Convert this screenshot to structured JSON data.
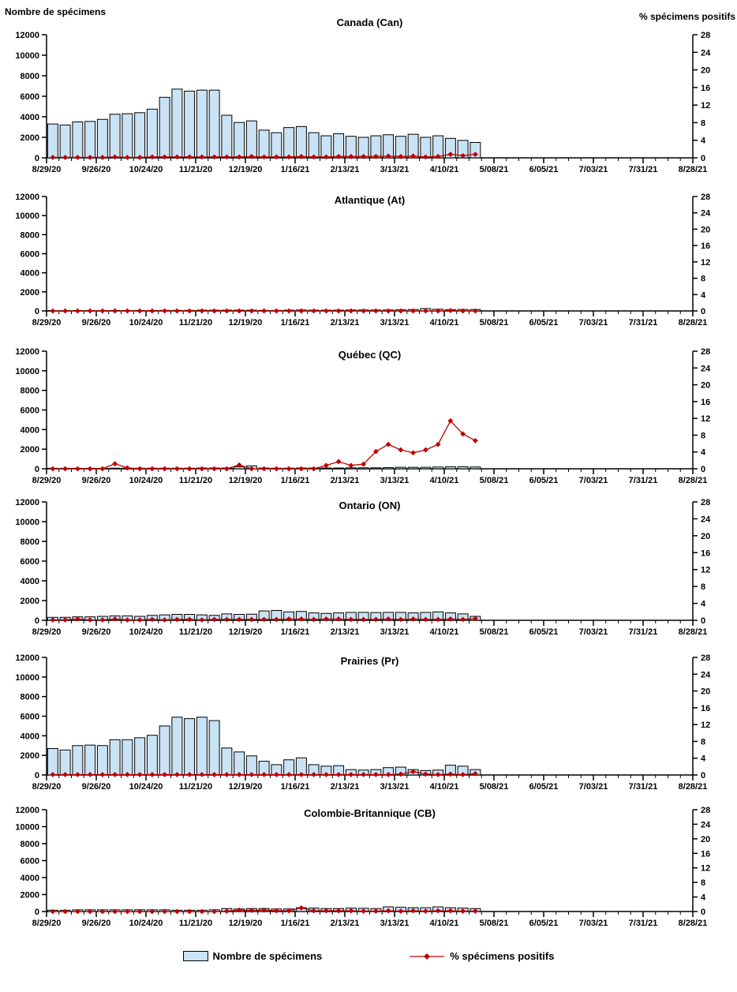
{
  "headers": {
    "left": "Nombre de spécimens",
    "right": "% spécimens positifs"
  },
  "legend": {
    "bar_label": "Nombre de spécimens",
    "line_label": "% spécimens positifs"
  },
  "colors": {
    "bar_fill": "#C9E3F6",
    "bar_border": "#000000",
    "line": "#C00000",
    "axis": "#000000",
    "text": "#000000"
  },
  "chart_data": {
    "type": "bar+line",
    "categories": [
      "8/29/20",
      "9/5/20",
      "9/12/20",
      "9/19/20",
      "9/26/20",
      "10/3/20",
      "10/10/20",
      "10/17/20",
      "10/24/20",
      "10/31/20",
      "11/7/20",
      "11/14/20",
      "11/21/20",
      "11/28/20",
      "12/5/20",
      "12/12/20",
      "12/19/20",
      "12/26/20",
      "1/2/21",
      "1/9/21",
      "1/16/21",
      "1/23/21",
      "1/30/21",
      "2/6/21",
      "2/13/21",
      "2/20/21",
      "2/27/21",
      "3/6/21",
      "3/13/21",
      "3/20/21",
      "3/27/21",
      "4/3/21",
      "4/10/21",
      "4/17/21",
      "4/24/21"
    ],
    "x_axis": {
      "tick_labels": [
        "8/29/20",
        "9/26/20",
        "10/24/20",
        "11/21/20",
        "12/19/20",
        "1/16/21",
        "2/13/21",
        "3/13/21",
        "4/10/21",
        "5/08/21",
        "6/05/21",
        "7/03/21",
        "7/31/21",
        "8/28/21"
      ],
      "weeks_total": 52
    },
    "left_axis": {
      "label": "Nombre de spécimens",
      "range": [
        0,
        12000
      ],
      "ticks": [
        12000,
        10000,
        8000,
        6000,
        4000,
        2000,
        0
      ]
    },
    "right_axis": {
      "label": "% spécimens positifs",
      "range": [
        0,
        28
      ],
      "ticks": [
        28,
        24,
        20,
        16,
        12,
        8,
        4,
        0
      ]
    },
    "panels": [
      {
        "title": "Canada (Can)",
        "series": [
          {
            "name": "Nombre de spécimens",
            "type": "bar",
            "axis": "left",
            "values": [
              3300,
              3200,
              3500,
              3550,
              3750,
              4250,
              4300,
              4400,
              4750,
              5900,
              6700,
              6500,
              6600,
              6600,
              4150,
              3450,
              3600,
              2700,
              2450,
              2950,
              3050,
              2450,
              2150,
              2350,
              2100,
              2000,
              2150,
              2250,
              2100,
              2300,
              2000,
              2150,
              1900,
              1700,
              1500
            ]
          },
          {
            "name": "% spécimens positifs",
            "type": "line",
            "axis": "right",
            "values": [
              0.1,
              0.1,
              0.1,
              0.1,
              0.1,
              0.2,
              0.1,
              0.1,
              0.2,
              0.2,
              0.2,
              0.2,
              0.2,
              0.2,
              0.2,
              0.2,
              0.3,
              0.2,
              0.2,
              0.2,
              0.3,
              0.2,
              0.2,
              0.3,
              0.3,
              0.3,
              0.3,
              0.4,
              0.3,
              0.4,
              0.2,
              0.3,
              0.8,
              0.5,
              0.8
            ]
          }
        ]
      },
      {
        "title": "Atlantique (At)",
        "series": [
          {
            "name": "Nombre de spécimens",
            "type": "bar",
            "axis": "left",
            "values": [
              30,
              30,
              40,
              40,
              40,
              50,
              50,
              50,
              50,
              60,
              60,
              60,
              80,
              80,
              80,
              80,
              80,
              60,
              60,
              80,
              100,
              80,
              80,
              80,
              100,
              100,
              100,
              100,
              120,
              150,
              250,
              180,
              130,
              150,
              150
            ]
          },
          {
            "name": "% spécimens positifs",
            "type": "line",
            "axis": "right",
            "values": [
              0,
              0,
              0,
              0,
              0,
              0,
              0,
              0,
              0,
              0,
              0,
              0,
              0,
              0,
              0,
              0,
              0,
              0,
              0,
              0,
              0,
              0,
              0,
              0,
              0,
              0,
              0,
              0,
              0,
              0,
              0,
              0,
              0.1,
              0,
              0
            ]
          }
        ]
      },
      {
        "title": "Québec (QC)",
        "series": [
          {
            "name": "Nombre de spécimens",
            "type": "bar",
            "axis": "left",
            "values": [
              50,
              50,
              50,
              50,
              50,
              60,
              60,
              60,
              60,
              60,
              60,
              60,
              80,
              80,
              80,
              200,
              300,
              80,
              60,
              60,
              80,
              80,
              80,
              80,
              100,
              100,
              100,
              120,
              150,
              150,
              150,
              180,
              200,
              200,
              180
            ]
          },
          {
            "name": "% spécimens positifs",
            "type": "line",
            "axis": "right",
            "values": [
              0,
              0,
              0,
              0,
              0,
              1.2,
              0.2,
              0,
              0,
              0,
              0,
              0,
              0,
              0,
              0,
              0.9,
              0,
              0,
              0,
              0,
              0,
              0,
              0.8,
              1.7,
              0.8,
              1.1,
              4.1,
              5.8,
              4.5,
              3.8,
              4.5,
              5.8,
              11.4,
              8.3,
              6.7
            ]
          }
        ]
      },
      {
        "title": "Ontario (ON)",
        "series": [
          {
            "name": "Nombre de spécimens",
            "type": "bar",
            "axis": "left",
            "values": [
              300,
              300,
              350,
              350,
              400,
              450,
              450,
              400,
              500,
              550,
              600,
              600,
              550,
              500,
              650,
              600,
              620,
              950,
              1000,
              850,
              900,
              750,
              700,
              750,
              800,
              800,
              780,
              800,
              800,
              750,
              800,
              850,
              750,
              650,
              400
            ]
          },
          {
            "name": "% spécimens positifs",
            "type": "line",
            "axis": "right",
            "values": [
              0.1,
              0.1,
              0.3,
              0.1,
              0.1,
              0.3,
              0.1,
              0.1,
              0.2,
              0.1,
              0.2,
              0.2,
              0.1,
              0.2,
              0.2,
              0.2,
              0.2,
              0.2,
              0.2,
              0.3,
              0.3,
              0.2,
              0.3,
              0.3,
              0.2,
              0.2,
              0.2,
              0.3,
              0.2,
              0.3,
              0.2,
              0.2,
              0.3,
              0.2,
              0.4
            ]
          }
        ]
      },
      {
        "title": "Prairies (Pr)",
        "series": [
          {
            "name": "Nombre de spécimens",
            "type": "bar",
            "axis": "left",
            "values": [
              2700,
              2550,
              3000,
              3050,
              3000,
              3600,
              3600,
              3800,
              4050,
              5000,
              5900,
              5750,
              5900,
              5550,
              2750,
              2350,
              1950,
              1400,
              1050,
              1550,
              1750,
              1050,
              900,
              950,
              550,
              500,
              550,
              750,
              800,
              550,
              450,
              500,
              1000,
              900,
              550
            ]
          },
          {
            "name": "% spécimens positifs",
            "type": "line",
            "axis": "right",
            "values": [
              0.1,
              0.1,
              0.1,
              0.1,
              0.1,
              0.1,
              0.1,
              0.1,
              0.1,
              0.1,
              0.1,
              0.1,
              0.1,
              0.1,
              0.1,
              0.1,
              0.1,
              0.1,
              0.1,
              0.1,
              0.1,
              0.1,
              0.1,
              0.1,
              0.1,
              0.1,
              0.1,
              0.1,
              0.2,
              0.8,
              0.2,
              0.1,
              0.2,
              0.1,
              0.3
            ]
          }
        ]
      },
      {
        "title": "Colombie-Britannique (CB)",
        "series": [
          {
            "name": "Nombre de spécimens",
            "type": "bar",
            "axis": "left",
            "values": [
              150,
              150,
              200,
              200,
              200,
              200,
              200,
              200,
              200,
              200,
              150,
              150,
              150,
              200,
              350,
              300,
              350,
              350,
              300,
              300,
              450,
              400,
              350,
              350,
              400,
              380,
              350,
              550,
              500,
              450,
              450,
              550,
              450,
              400,
              350
            ]
          },
          {
            "name": "% spécimens positifs",
            "type": "line",
            "axis": "right",
            "values": [
              0,
              0,
              0,
              0,
              0,
              0,
              0,
              0,
              0,
              0,
              0,
              0,
              0,
              0,
              0.1,
              0.4,
              0.3,
              0.4,
              0.2,
              0.2,
              1.0,
              0.2,
              0.2,
              0.2,
              0.2,
              0.1,
              0.1,
              0.2,
              0.1,
              0.2,
              0.1,
              0.2,
              0.2,
              0.1,
              0.1
            ]
          }
        ]
      }
    ]
  }
}
